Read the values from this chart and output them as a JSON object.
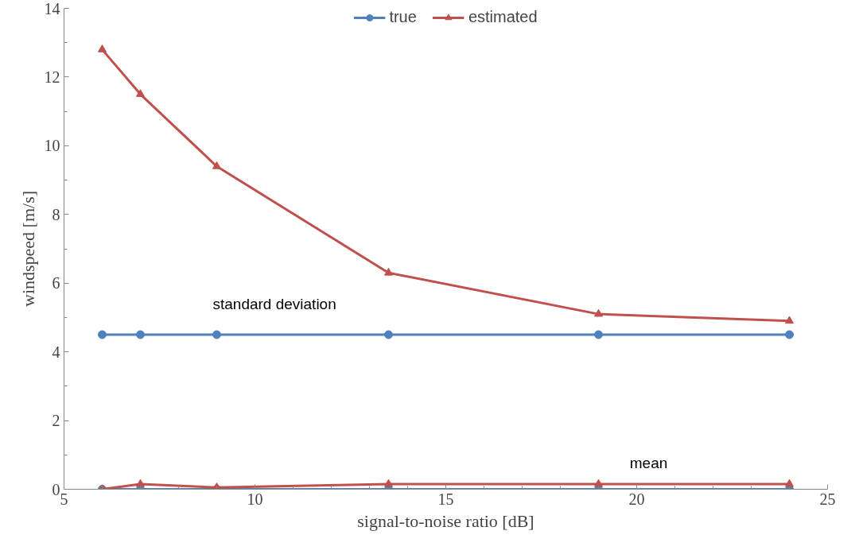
{
  "chart_data": {
    "type": "line",
    "xlabel": "signal-to-noise ratio [dB]",
    "ylabel": "windspeed [m/s]",
    "x": [
      6,
      7,
      9,
      13.5,
      19,
      24
    ],
    "series": [
      {
        "name": "true",
        "color": "#4f81bd",
        "marker": "circle",
        "values": [
          4.5,
          4.5,
          4.5,
          4.5,
          4.5,
          4.5
        ]
      },
      {
        "name": "estimated",
        "color": "#c0504d",
        "marker": "triangle",
        "values": [
          12.8,
          11.5,
          9.4,
          6.3,
          5.1,
          4.9
        ]
      },
      {
        "color": "#4f81bd",
        "marker": "circle",
        "values": [
          0,
          0,
          0,
          0,
          0,
          0
        ]
      },
      {
        "color": "#c0504d",
        "marker": "triangle",
        "values": [
          0,
          0.15,
          0.05,
          0.15,
          0.15,
          0.15
        ]
      }
    ],
    "annotations": [
      "standard deviation",
      "mean"
    ],
    "xlim": [
      5,
      25
    ],
    "xticks": [
      5,
      10,
      15,
      20,
      25
    ],
    "ylim": [
      0,
      14
    ],
    "yticks": [
      0,
      2,
      4,
      6,
      8,
      10,
      12,
      14
    ],
    "grid": false,
    "legend": "top"
  }
}
